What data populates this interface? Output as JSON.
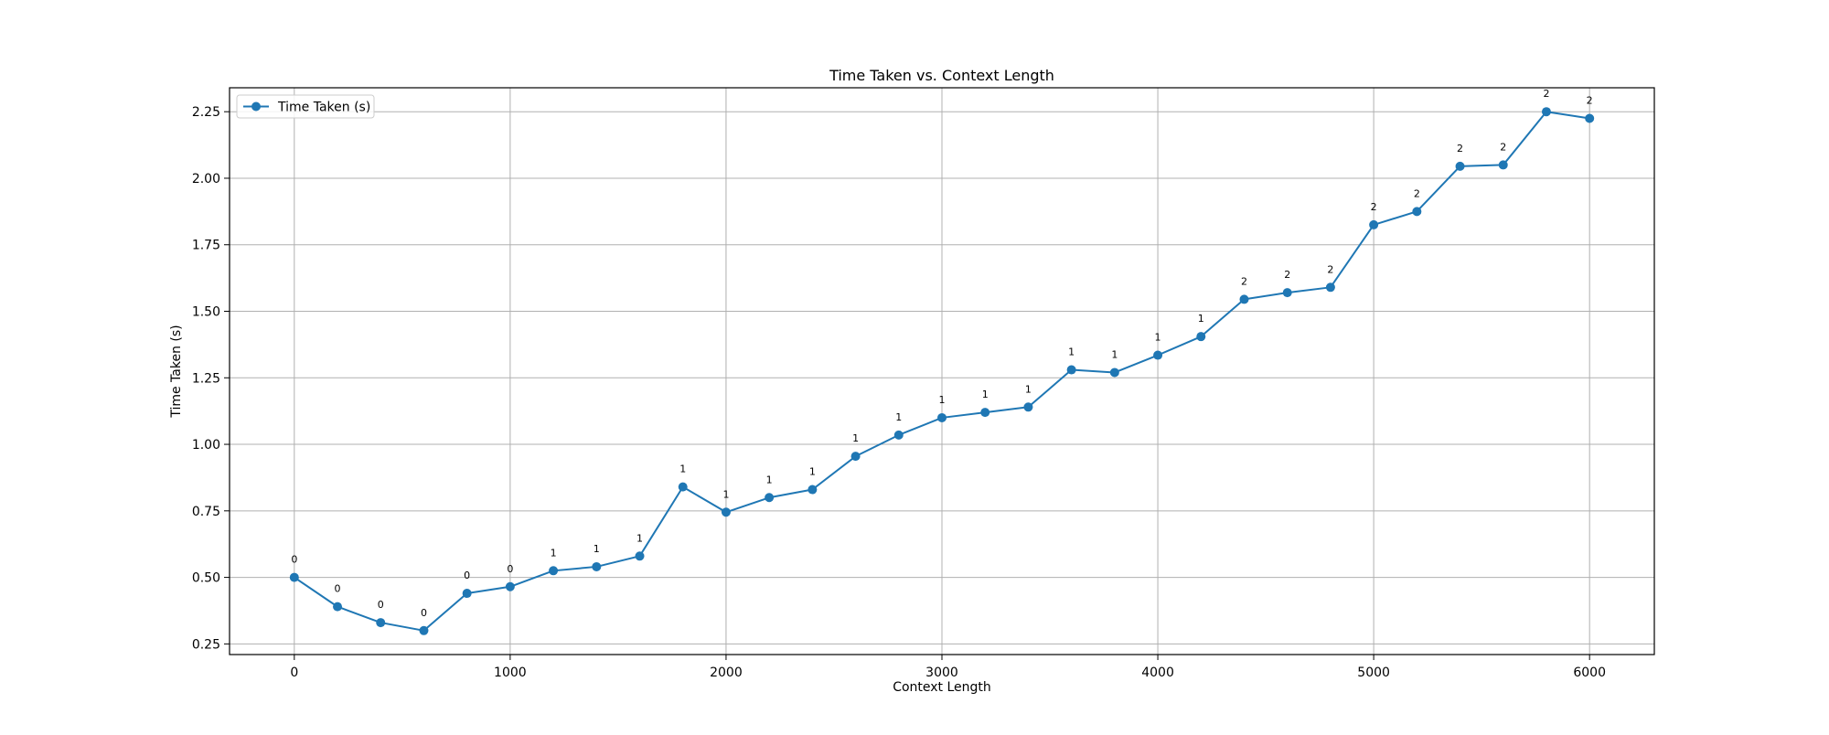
{
  "chart_data": {
    "type": "line",
    "title": "Time Taken vs. Context Length",
    "xlabel": "Context Length",
    "ylabel": "Time Taken (s)",
    "xlim": [
      -300,
      6300
    ],
    "ylim": [
      0.21,
      2.34
    ],
    "x_ticks": [
      0,
      1000,
      2000,
      3000,
      4000,
      5000,
      6000
    ],
    "y_ticks": [
      0.25,
      0.5,
      0.75,
      1.0,
      1.25,
      1.5,
      1.75,
      2.0,
      2.25
    ],
    "x_tick_labels": [
      "0",
      "1000",
      "2000",
      "3000",
      "4000",
      "5000",
      "6000"
    ],
    "y_tick_labels": [
      "0.25",
      "0.50",
      "0.75",
      "1.00",
      "1.25",
      "1.50",
      "1.75",
      "2.00",
      "2.25"
    ],
    "grid": true,
    "legend_position": "top-left",
    "series": [
      {
        "name": "Time Taken (s)",
        "color": "#1f77b4",
        "marker": "circle",
        "x": [
          0,
          200,
          400,
          600,
          800,
          1000,
          1200,
          1400,
          1600,
          1800,
          2000,
          2200,
          2400,
          2600,
          2800,
          3000,
          3200,
          3400,
          3600,
          3800,
          4000,
          4200,
          4400,
          4600,
          4800,
          5000,
          5200,
          5400,
          5600,
          5800,
          6000
        ],
        "y": [
          0.5,
          0.39,
          0.33,
          0.3,
          0.44,
          0.465,
          0.525,
          0.54,
          0.58,
          0.84,
          0.745,
          0.8,
          0.83,
          0.955,
          1.035,
          1.1,
          1.12,
          1.14,
          1.28,
          1.27,
          1.335,
          1.405,
          1.545,
          1.57,
          1.59,
          1.825,
          1.875,
          2.045,
          2.05,
          2.25,
          2.225
        ],
        "point_labels": [
          "0",
          "0",
          "0",
          "0",
          "0",
          "0",
          "1",
          "1",
          "1",
          "1",
          "1",
          "1",
          "1",
          "1",
          "1",
          "1",
          "1",
          "1",
          "1",
          "1",
          "1",
          "1",
          "2",
          "2",
          "2",
          "2",
          "2",
          "2",
          "2",
          "2",
          "2"
        ]
      }
    ]
  }
}
